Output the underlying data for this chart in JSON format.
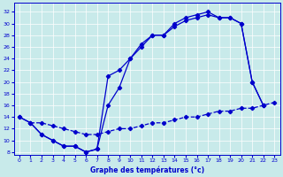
{
  "xlabel": "Graphe des températures (°c)",
  "bg_color": "#c8eaea",
  "line_color": "#0000cc",
  "xlim": [
    -0.5,
    23.5
  ],
  "ylim": [
    7.5,
    33.5
  ],
  "xticks": [
    0,
    1,
    2,
    3,
    4,
    5,
    6,
    7,
    8,
    9,
    10,
    11,
    12,
    13,
    14,
    15,
    16,
    17,
    18,
    19,
    20,
    21,
    22,
    23
  ],
  "yticks": [
    8,
    10,
    12,
    14,
    16,
    18,
    20,
    22,
    24,
    26,
    28,
    30,
    32
  ],
  "line1_x": [
    0,
    1,
    2,
    3,
    4,
    5,
    6,
    7,
    8,
    9,
    10,
    11,
    12,
    13,
    14,
    15,
    16,
    17,
    18,
    19,
    20,
    21,
    22
  ],
  "line1_y": [
    14,
    13,
    11,
    10,
    9,
    9,
    8,
    8.5,
    21,
    22,
    24,
    26,
    28,
    28,
    30,
    31,
    31.5,
    32,
    31,
    31,
    30,
    20,
    16
  ],
  "line2_x": [
    0,
    1,
    2,
    3,
    4,
    5,
    6,
    7,
    8,
    9,
    10,
    11,
    12,
    13,
    14,
    15,
    16,
    17,
    18,
    19,
    20,
    21,
    22
  ],
  "line2_y": [
    14,
    13,
    11,
    10,
    9,
    9,
    8,
    8.5,
    16,
    19,
    24,
    26.5,
    28,
    28,
    29.5,
    30.5,
    31,
    31.5,
    31,
    31,
    30,
    20,
    16
  ],
  "line3_x": [
    1,
    2,
    3,
    4,
    5,
    6,
    7,
    8,
    9,
    10,
    11,
    12,
    13,
    14,
    15,
    16,
    17,
    18,
    19,
    20,
    21,
    22,
    23
  ],
  "line3_y": [
    13,
    13,
    12.5,
    12,
    11.5,
    11,
    11,
    11.5,
    12,
    12,
    12.5,
    13,
    13,
    13.5,
    14,
    14,
    14.5,
    15,
    15,
    15.5,
    15.5,
    16,
    16.5
  ]
}
